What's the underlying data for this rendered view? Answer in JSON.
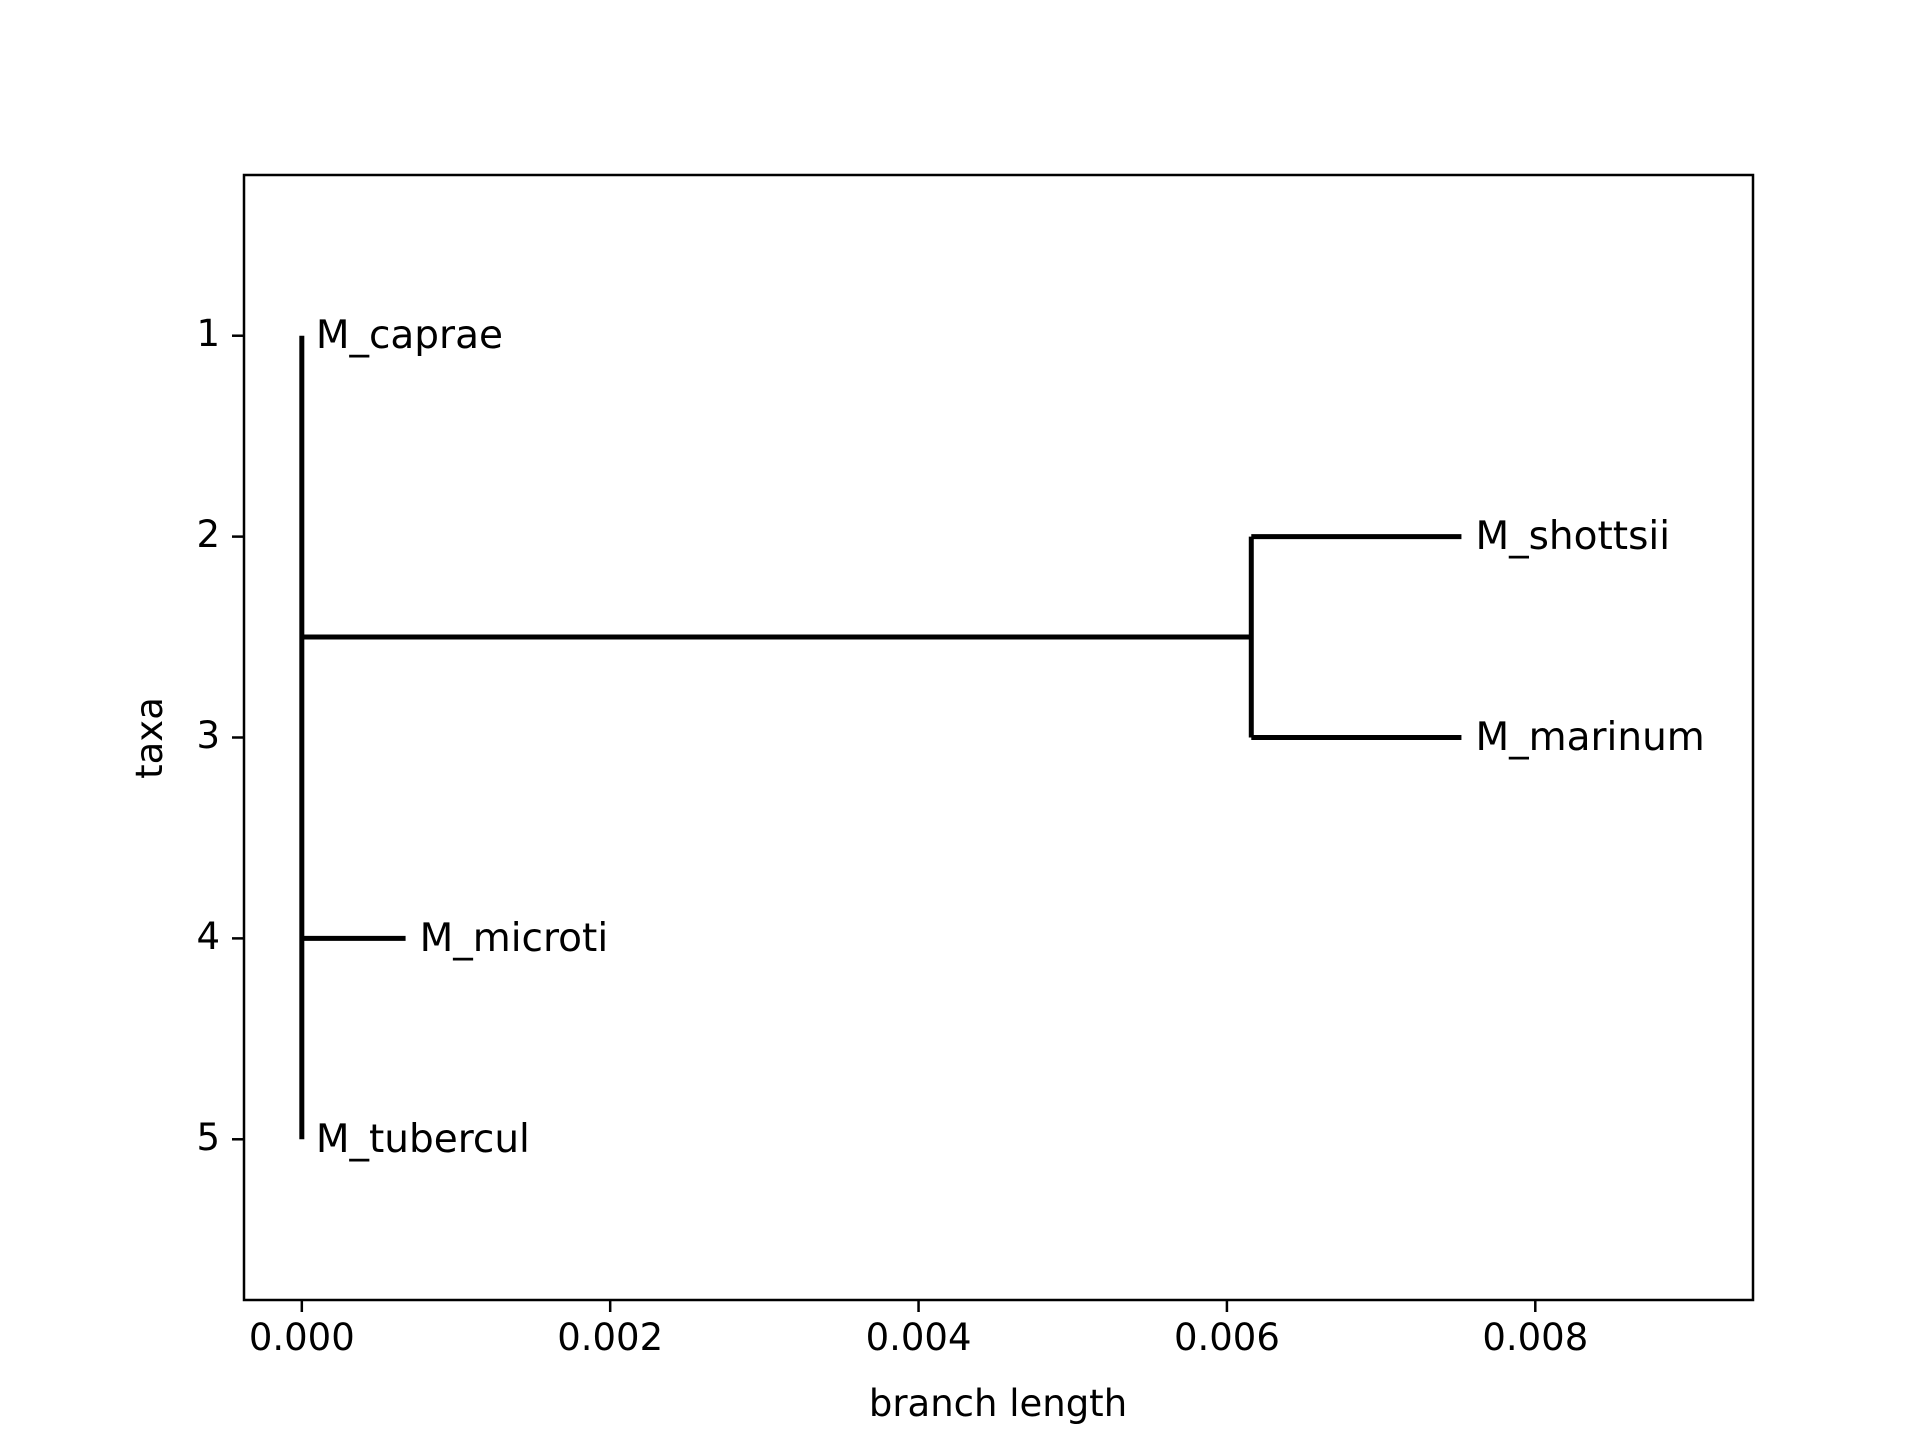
{
  "chart_data": {
    "type": "phylogenetic-tree",
    "xlabel": "branch length",
    "ylabel": "taxa",
    "xlim": [
      -0.000375,
      0.009412
    ],
    "ylim": [
      5.8,
      0.2
    ],
    "xticks": [
      {
        "value": 0.0,
        "label": "0.000"
      },
      {
        "value": 0.002,
        "label": "0.002"
      },
      {
        "value": 0.004,
        "label": "0.004"
      },
      {
        "value": 0.006,
        "label": "0.006"
      },
      {
        "value": 0.008,
        "label": "0.008"
      }
    ],
    "yticks": [
      {
        "value": 1,
        "label": "1"
      },
      {
        "value": 2,
        "label": "2"
      },
      {
        "value": 3,
        "label": "3"
      },
      {
        "value": 4,
        "label": "4"
      },
      {
        "value": 5,
        "label": "5"
      }
    ],
    "branches": [
      {
        "name": "root-vertical",
        "x1": 0.0,
        "y1": 1,
        "x2": 0.0,
        "y2": 5
      },
      {
        "name": "clade-stem",
        "x1": 0.0,
        "y1": 2.5,
        "x2": 0.006158,
        "y2": 2.5
      },
      {
        "name": "clade-vertical",
        "x1": 0.006158,
        "y1": 2,
        "x2": 0.006158,
        "y2": 3
      },
      {
        "name": "M_shottsii-branch",
        "x1": 0.006158,
        "y1": 2,
        "x2": 0.007521,
        "y2": 2
      },
      {
        "name": "M_marinum-branch",
        "x1": 0.006158,
        "y1": 3,
        "x2": 0.007521,
        "y2": 3
      },
      {
        "name": "M_microti-branch",
        "x1": 0.0,
        "y1": 4,
        "x2": 0.000673,
        "y2": 4
      }
    ],
    "leaves": [
      {
        "label": "M_caprae",
        "x": 0.0,
        "y": 1
      },
      {
        "label": "M_shottsii",
        "x": 0.007521,
        "y": 2
      },
      {
        "label": "M_marinum",
        "x": 0.007521,
        "y": 3
      },
      {
        "label": "M_microti",
        "x": 0.000673,
        "y": 4
      },
      {
        "label": "M_tubercul",
        "x": 0.0,
        "y": 5
      }
    ],
    "grid": false,
    "colors": {
      "branch": "#000000",
      "axes": "#000000",
      "background": "#ffffff"
    }
  }
}
